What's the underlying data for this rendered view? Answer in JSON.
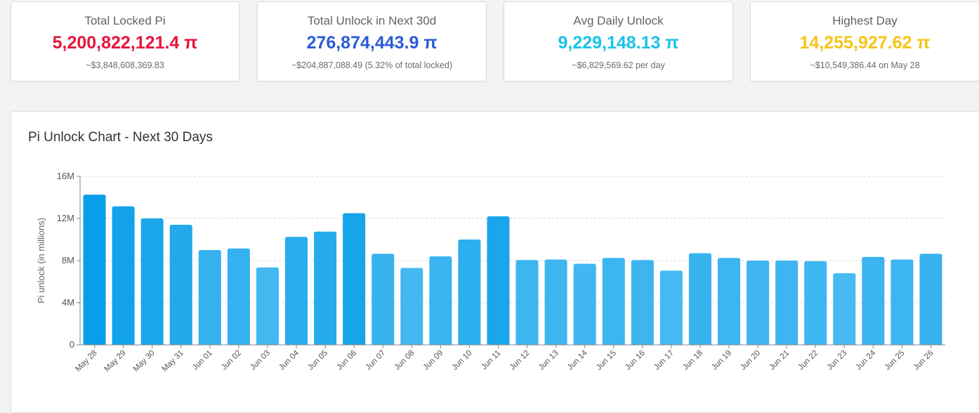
{
  "cards": [
    {
      "title": "Total Locked Pi",
      "value": "5,200,822,121.4 π",
      "sub": "~$3,848,608,369.83",
      "color": "#e8143c"
    },
    {
      "title": "Total Unlock in Next 30d",
      "value": "276,874,443.9 π",
      "sub": "~$204,887,088.49 (5.32% of total locked)",
      "color": "#2a5bd7"
    },
    {
      "title": "Avg Daily Unlock",
      "value": "9,229,148.13 π",
      "sub": "~$6,829,569.62 per day",
      "color": "#1ac2ea"
    },
    {
      "title": "Highest Day",
      "value": "14,255,927.62 π",
      "sub": "~$10,549,386.44 on May 28",
      "color": "#f5c518"
    }
  ],
  "chart_panel": {
    "title": "Pi Unlock Chart - Next 30 Days"
  },
  "chart_data": {
    "type": "bar",
    "title": "Pi Unlock Chart - Next 30 Days",
    "xlabel": "",
    "ylabel": "Pi unlock (in millions)",
    "ylim": [
      0,
      16000000
    ],
    "yticks": [
      0,
      4000000,
      8000000,
      12000000,
      16000000
    ],
    "ytick_labels": [
      "0",
      "4M",
      "8M",
      "12M",
      "16M"
    ],
    "grid": true,
    "categories": [
      "May 28",
      "May 29",
      "May 30",
      "May 31",
      "Jun 01",
      "Jun 02",
      "Jun 03",
      "Jun 04",
      "Jun 05",
      "Jun 06",
      "Jun 07",
      "Jun 08",
      "Jun 09",
      "Jun 10",
      "Jun 11",
      "Jun 12",
      "Jun 13",
      "Jun 14",
      "Jun 15",
      "Jun 16",
      "Jun 17",
      "Jun 18",
      "Jun 19",
      "Jun 20",
      "Jun 21",
      "Jun 22",
      "Jun 23",
      "Jun 24",
      "Jun 25",
      "Jun 26"
    ],
    "values": [
      14255927.62,
      13150000,
      12000000,
      11400000,
      9000000,
      9150000,
      7350000,
      10250000,
      10750000,
      12500000,
      8650000,
      7300000,
      8400000,
      10000000,
      12200000,
      8050000,
      8100000,
      7700000,
      8250000,
      8050000,
      7050000,
      8700000,
      8250000,
      8000000,
      8000000,
      7950000,
      6800000,
      8350000,
      8100000,
      8650000
    ]
  }
}
